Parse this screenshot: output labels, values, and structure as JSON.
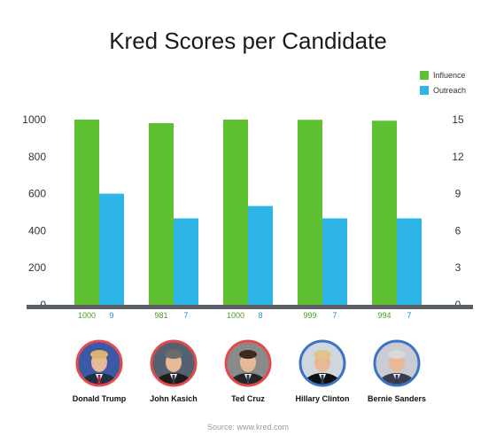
{
  "chart_data": {
    "type": "bar",
    "title": "Kred Scores per Candidate",
    "categories": [
      "Donald Trump",
      "John Kasich",
      "Ted Cruz",
      "Hillary Clinton",
      "Bernie Sanders"
    ],
    "series": [
      {
        "name": "Influence",
        "axis": "left",
        "color": "#5fc032",
        "values": [
          1000,
          981,
          1000,
          999,
          994
        ]
      },
      {
        "name": "Outreach",
        "axis": "right",
        "color": "#2cb5e6",
        "values": [
          9,
          7,
          8,
          7,
          7
        ]
      }
    ],
    "left_axis": {
      "ylim": [
        0,
        1000
      ],
      "ticks": [
        "0",
        "200",
        "400",
        "600",
        "800",
        "1000"
      ]
    },
    "right_axis": {
      "ylim": [
        0,
        15
      ],
      "ticks": [
        "0",
        "3",
        "6",
        "9",
        "12",
        "15"
      ]
    },
    "legend": "top-right",
    "source": "Source: www.kred.com"
  },
  "candidates": [
    {
      "name": "Donald Trump",
      "ring": "#e24b4b"
    },
    {
      "name": "John Kasich",
      "ring": "#e24b4b"
    },
    {
      "name": "Ted Cruz",
      "ring": "#e24b4b"
    },
    {
      "name": "Hillary Clinton",
      "ring": "#3a74c4"
    },
    {
      "name": "Bernie Sanders",
      "ring": "#3a74c4"
    }
  ],
  "colors": {
    "baseline": "#59606a"
  }
}
